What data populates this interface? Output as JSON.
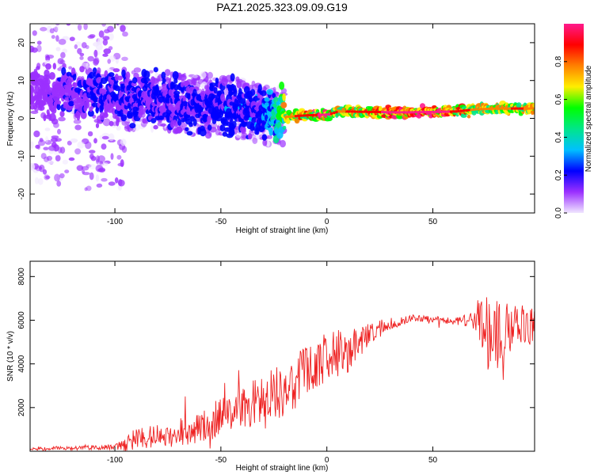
{
  "title": "PAZ1.2025.323.09.09.G19",
  "colors": {
    "snr_line": "#ee2222",
    "axis": "#000000",
    "colorscale": [
      "#f0e6ff",
      "#9b30ff",
      "#0000ff",
      "#00c0ff",
      "#00e68a",
      "#00ff00",
      "#ffee00",
      "#ff8000",
      "#ff0000",
      "#ff1a8c"
    ]
  },
  "chart_data": [
    {
      "type": "heatmap",
      "name": "spectrogram",
      "xlabel": "Height of straight line (km)",
      "ylabel": "Frequency (Hz)",
      "xlim": [
        -140,
        98
      ],
      "ylim": [
        -25,
        25
      ],
      "xticks": [
        -100,
        -50,
        0,
        50
      ],
      "yticks": [
        -20,
        -10,
        0,
        10,
        20
      ],
      "colorbar": {
        "label": "Normalized spectral amplitude",
        "range": [
          0.0,
          1.0
        ],
        "ticks": [
          0.0,
          0.2,
          0.4,
          0.6,
          0.8
        ]
      },
      "ridge": {
        "description": "dominant frequency versus height",
        "x": [
          -140,
          -120,
          -100,
          -90,
          -80,
          -70,
          -60,
          -50,
          -40,
          -30,
          -25,
          -20,
          -15,
          -10,
          -5,
          0,
          5,
          10,
          20,
          30,
          40,
          50,
          60,
          70,
          80,
          90,
          98
        ],
        "freq": [
          7.5,
          6.5,
          5.5,
          5.0,
          4.6,
          4.0,
          3.6,
          3.2,
          2.5,
          1.6,
          0.5,
          0.4,
          0.6,
          0.8,
          0.9,
          1.0,
          1.8,
          1.8,
          1.7,
          1.6,
          1.6,
          1.7,
          1.8,
          2.4,
          2.6,
          2.6,
          2.6
        ],
        "amplitude": [
          0.12,
          0.18,
          0.2,
          0.2,
          0.2,
          0.2,
          0.22,
          0.24,
          0.25,
          0.25,
          0.4,
          0.65,
          0.75,
          0.8,
          0.85,
          0.9,
          0.7,
          0.75,
          0.8,
          0.9,
          0.95,
          0.95,
          0.8,
          0.7,
          0.7,
          0.75,
          0.7
        ]
      }
    },
    {
      "type": "line",
      "name": "snr",
      "xlabel": "Height of straight line (km)",
      "ylabel": "SNR (10 * v/v)",
      "xlim": [
        -140,
        98
      ],
      "ylim": [
        0,
        8700
      ],
      "xticks": [
        -100,
        -50,
        0,
        50
      ],
      "yticks": [
        2000,
        4000,
        6000,
        8000
      ],
      "envelope": {
        "x": [
          -140,
          -120,
          -100,
          -95,
          -90,
          -80,
          -70,
          -60,
          -50,
          -40,
          -30,
          -20,
          -10,
          0,
          10,
          20,
          30,
          40,
          50,
          60,
          70,
          75,
          80,
          85,
          90,
          98
        ],
        "mean": [
          100,
          150,
          200,
          300,
          600,
          700,
          800,
          1100,
          1500,
          2000,
          2400,
          2900,
          3600,
          4300,
          4600,
          5400,
          5800,
          6100,
          6050,
          5950,
          6000,
          5500,
          5300,
          5600,
          5700,
          5800
        ],
        "spread": [
          80,
          100,
          120,
          300,
          500,
          500,
          600,
          700,
          900,
          1000,
          1200,
          1300,
          1300,
          1200,
          1000,
          500,
          300,
          150,
          150,
          150,
          400,
          1800,
          1600,
          1200,
          1000,
          900
        ]
      }
    }
  ]
}
